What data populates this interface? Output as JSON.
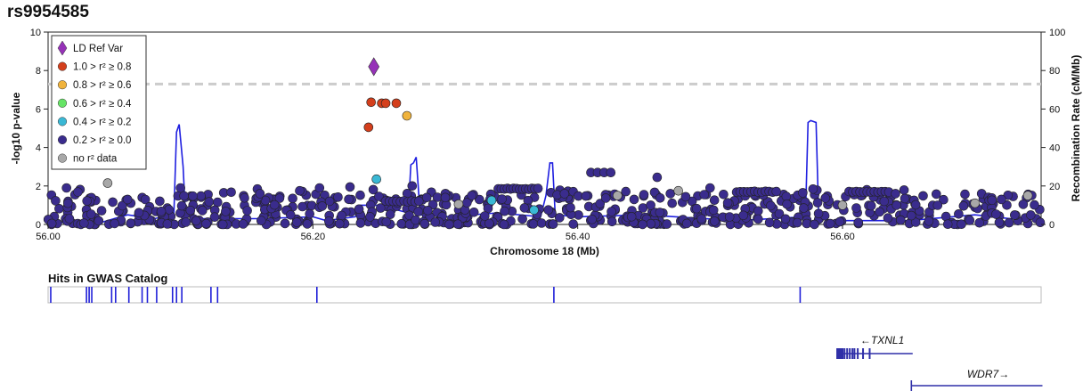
{
  "page": {
    "title": "rs9954585"
  },
  "colors": {
    "ref": "#9632b8",
    "r2_08_10": "#d43f1c",
    "r2_06_08": "#f0b33c",
    "r2_04_06": "#66e466",
    "r2_02_04": "#3ab8d5",
    "r2_00_02": "#3a2c8d",
    "no_r2": "#a8a8a8",
    "recomb": "#1f1fe0",
    "threshold": "#cccccc"
  },
  "chart_data": {
    "type": "scatter",
    "xlabel": "Chromosome 18 (Mb)",
    "ylabel": "-log10 p-value",
    "y2label": "Recombination Rate (cM/Mb)",
    "xlim": [
      56.0,
      56.75
    ],
    "ylim": [
      0,
      10
    ],
    "y2lim": [
      0,
      100
    ],
    "x_ticks": [
      "56.00",
      "56.20",
      "56.40",
      "56.60"
    ],
    "y_ticks": [
      "0",
      "2",
      "4",
      "6",
      "8",
      "10"
    ],
    "y2_ticks": [
      "0",
      "20",
      "40",
      "60",
      "80",
      "100"
    ],
    "significance_line": 7.3,
    "legend": [
      {
        "label": "LD Ref Var",
        "color_key": "ref",
        "shape": "diamond"
      },
      {
        "label": "1.0 > r² ≥ 0.8",
        "color_key": "r2_08_10",
        "shape": "circle"
      },
      {
        "label": "0.8 > r² ≥ 0.6",
        "color_key": "r2_06_08",
        "shape": "circle"
      },
      {
        "label": "0.6 > r² ≥ 0.4",
        "color_key": "r2_04_06",
        "shape": "circle"
      },
      {
        "label": "0.4 > r² ≥ 0.2",
        "color_key": "r2_02_04",
        "shape": "circle"
      },
      {
        "label": "0.2 > r² ≥ 0.0",
        "color_key": "r2_00_02",
        "shape": "circle"
      },
      {
        "label": "no r² data",
        "color_key": "no_r2",
        "shape": "circle"
      }
    ],
    "legend_position": "top-left",
    "ref_variant": {
      "x": 56.246,
      "y": 8.2
    },
    "highlight_points": [
      {
        "x": 56.244,
        "y": 6.35,
        "cls": "r2_08_10"
      },
      {
        "x": 56.252,
        "y": 6.3,
        "cls": "r2_08_10"
      },
      {
        "x": 56.255,
        "y": 6.3,
        "cls": "r2_08_10"
      },
      {
        "x": 56.263,
        "y": 6.3,
        "cls": "r2_08_10"
      },
      {
        "x": 56.242,
        "y": 5.05,
        "cls": "r2_08_10"
      },
      {
        "x": 56.271,
        "y": 5.65,
        "cls": "r2_06_08"
      },
      {
        "x": 56.248,
        "y": 2.35,
        "cls": "r2_02_04"
      },
      {
        "x": 56.335,
        "y": 1.25,
        "cls": "r2_02_04"
      },
      {
        "x": 56.367,
        "y": 0.75,
        "cls": "r2_02_04"
      },
      {
        "x": 56.045,
        "y": 2.15,
        "cls": "no_r2"
      },
      {
        "x": 56.476,
        "y": 1.75,
        "cls": "no_r2"
      },
      {
        "x": 56.31,
        "y": 1.05,
        "cls": "no_r2"
      },
      {
        "x": 56.43,
        "y": 1.5,
        "cls": "no_r2"
      },
      {
        "x": 56.6,
        "y": 1.0,
        "cls": "no_r2"
      },
      {
        "x": 56.7,
        "y": 1.1,
        "cls": "no_r2"
      },
      {
        "x": 56.74,
        "y": 1.5,
        "cls": "no_r2"
      }
    ],
    "background_points": "several hundred variants with 0.2 > r² ≥ 0.0 at -log10 p between 0 and about 2 across the region; isolated values near 56.21 (1.9), 56.28 (2.0), 56.29 (1.4), 56.34 to 56.37 (1.85 band), 56.41 to 56.43 (2.7), 56.46 (2.5), 56.52 to 56.55 (1.7 band), 56.61 to 56.63 (1.7 band)",
    "recombination_rate": {
      "x": [
        56.0,
        56.04,
        56.06,
        56.08,
        56.095,
        56.097,
        56.099,
        56.102,
        56.104,
        56.11,
        56.16,
        56.2,
        56.21,
        56.232,
        56.236,
        56.25,
        56.272,
        56.274,
        56.276,
        56.278,
        56.281,
        56.3,
        56.34,
        56.372,
        56.376,
        56.379,
        56.381,
        56.383,
        56.4,
        56.45,
        56.52,
        56.572,
        56.574,
        56.576,
        56.58,
        56.582,
        56.59,
        56.65,
        56.7,
        56.74,
        56.746,
        56.75
      ],
      "y": [
        1,
        1,
        5,
        3,
        5,
        48,
        52,
        30,
        2,
        3,
        3,
        4,
        2,
        4,
        10,
        10,
        6,
        31,
        32,
        35,
        5,
        4,
        6,
        4,
        15,
        32,
        32,
        5,
        4,
        5,
        2,
        4,
        53,
        54,
        53,
        5,
        2,
        2,
        5,
        2,
        4,
        2
      ]
    },
    "gwas_track_title": "Hits in GWAS Catalog",
    "gwas_hits_mb": [
      56.002,
      56.029,
      56.031,
      56.033,
      56.048,
      56.051,
      56.061,
      56.071,
      56.075,
      56.082,
      56.094,
      56.097,
      56.101,
      56.123,
      56.128,
      56.203,
      56.382,
      56.568
    ],
    "genes": [
      {
        "name": "←TXNL1",
        "start": 56.596,
        "end": 56.653,
        "strand": "-",
        "exons": [
          56.596,
          56.6015,
          56.6035,
          56.6055,
          56.6075,
          56.609,
          56.6115,
          56.6155,
          56.6205
        ]
      },
      {
        "name": "WDR7→",
        "start": 56.652,
        "end": 56.751,
        "strand": "+",
        "exons": [
          56.652
        ]
      }
    ]
  }
}
